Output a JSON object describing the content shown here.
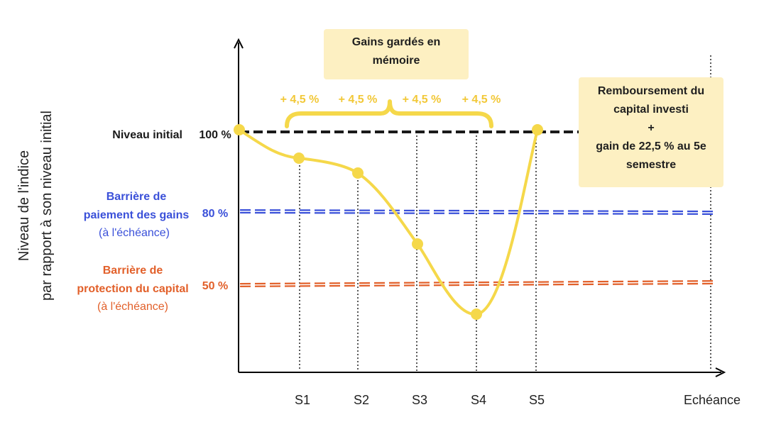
{
  "y_axis_title": [
    "Niveau de l'indice",
    "par rapport à son niveau initial"
  ],
  "levels": {
    "initial": {
      "label": "Niveau initial",
      "pct": "100 %",
      "value": 100,
      "color": "#1a1a1a"
    },
    "gains": {
      "label": [
        "Barrière de",
        "paiement des gains",
        "(à l'échéance)"
      ],
      "pct": "80 %",
      "value": 80,
      "color": "#3a50d9"
    },
    "capital": {
      "label": [
        "Barrière de",
        "protection du capital",
        "(à l'échéance)"
      ],
      "pct": "50 %",
      "value": 50,
      "color": "#e2602a"
    }
  },
  "x_labels": [
    "S1",
    "S2",
    "S3",
    "S4",
    "S5",
    "Echéance"
  ],
  "gains_box": {
    "lines": [
      "Gains gardés en",
      "mémoire"
    ]
  },
  "gains_labels": [
    "+ 4,5 %",
    "+ 4,5 %",
    "+ 4,5 %",
    "+ 4,5 %"
  ],
  "remb_box": {
    "lines": [
      "Remboursement du",
      "capital investi",
      "+",
      "gain de 22,5 % au 5e",
      "semestre"
    ]
  },
  "colors": {
    "curve": "#f5d84a",
    "box": "#fdf0c2",
    "gain_text": "#f2c838",
    "axis": "#000000"
  }
}
